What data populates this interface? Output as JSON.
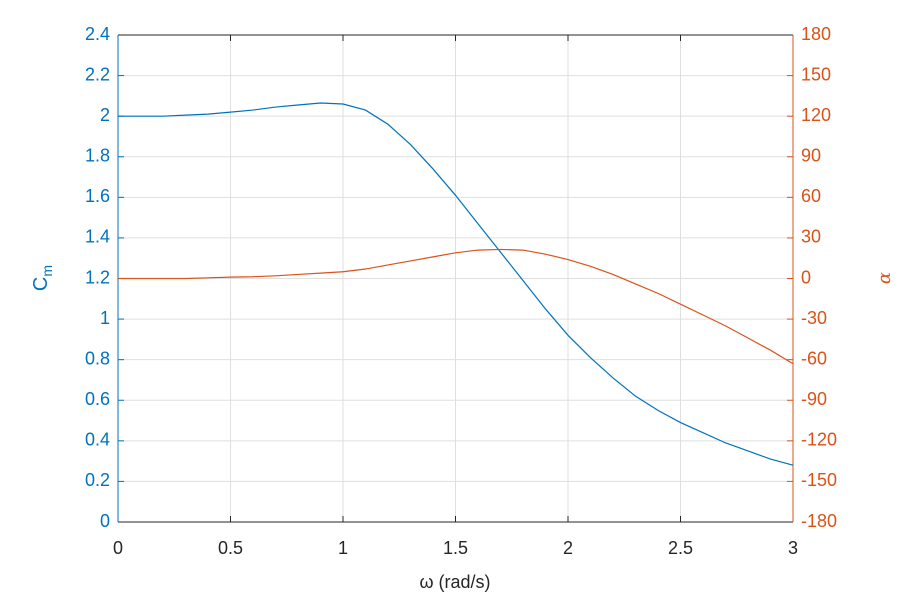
{
  "chart_data": {
    "type": "line",
    "xlabel": "ω (rad/s)",
    "ylabel": "C",
    "ylabel_subscript": "m",
    "y2label": "α",
    "x": [
      0,
      0.1,
      0.2,
      0.3,
      0.4,
      0.5,
      0.6,
      0.7,
      0.8,
      0.9,
      1.0,
      1.1,
      1.2,
      1.3,
      1.4,
      1.5,
      1.6,
      1.7,
      1.8,
      1.9,
      2.0,
      2.1,
      2.2,
      2.3,
      2.4,
      2.5,
      2.6,
      2.7,
      2.8,
      2.9,
      3.0
    ],
    "series": [
      {
        "name": "C_m",
        "color": "#0072BD",
        "axis": "y",
        "values": [
          2.0,
          2.0,
          2.0,
          2.005,
          2.01,
          2.02,
          2.03,
          2.045,
          2.055,
          2.065,
          2.06,
          2.03,
          1.96,
          1.86,
          1.74,
          1.61,
          1.47,
          1.33,
          1.19,
          1.05,
          0.92,
          0.81,
          0.71,
          0.62,
          0.55,
          0.49,
          0.44,
          0.39,
          0.35,
          0.31,
          0.28
        ]
      },
      {
        "name": "α",
        "color": "#D95319",
        "axis": "y2",
        "values": [
          0,
          0,
          0,
          0,
          0.5,
          1,
          1.3,
          2,
          3,
          4,
          5,
          7,
          10,
          13,
          16,
          19,
          21,
          21.5,
          21,
          18,
          14,
          9,
          3,
          -4,
          -11,
          -19,
          -27,
          -35,
          -44,
          -53,
          -63
        ]
      }
    ],
    "xlim": [
      0,
      3
    ],
    "xticks": [
      0,
      0.5,
      1,
      1.5,
      2,
      2.5,
      3
    ],
    "ylim": [
      0,
      2.4
    ],
    "yticks": [
      0,
      0.2,
      0.4,
      0.6,
      0.8,
      1,
      1.2,
      1.4,
      1.6,
      1.8,
      2,
      2.2,
      2.4
    ],
    "y2lim": [
      -180,
      180
    ],
    "y2ticks": [
      -180,
      -150,
      -120,
      -90,
      -60,
      -30,
      0,
      30,
      60,
      90,
      120,
      150,
      180
    ],
    "grid": true
  }
}
